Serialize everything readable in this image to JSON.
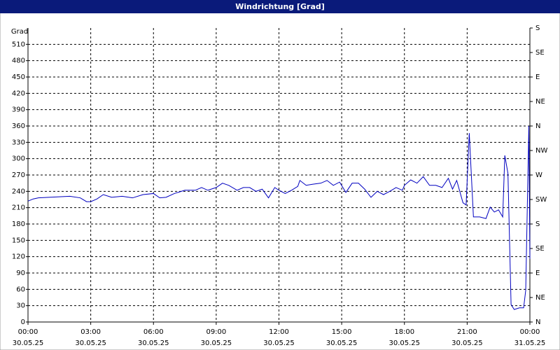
{
  "chart_data": {
    "type": "line",
    "title": "Windrichtung [Grad]",
    "y_label": "Grad",
    "x": [
      0,
      0.25,
      0.5,
      1.0,
      1.5,
      2.0,
      2.5,
      2.8,
      3.0,
      3.3,
      3.6,
      4.0,
      4.5,
      5.0,
      5.5,
      6.0,
      6.3,
      6.6,
      7.0,
      7.5,
      8.0,
      8.3,
      8.6,
      9.0,
      9.3,
      9.6,
      10.0,
      10.3,
      10.6,
      10.9,
      11.2,
      11.5,
      11.8,
      12.0,
      12.3,
      12.6,
      12.9,
      13.0,
      13.3,
      13.6,
      14.0,
      14.3,
      14.6,
      14.9,
      15.2,
      15.5,
      15.8,
      16.1,
      16.4,
      16.7,
      17.0,
      17.3,
      17.6,
      17.9,
      18.0,
      18.3,
      18.6,
      18.9,
      19.2,
      19.5,
      19.8,
      20.1,
      20.3,
      20.5,
      20.8,
      20.95,
      21.1,
      21.3,
      21.6,
      21.9,
      22.1,
      22.3,
      22.5,
      22.7,
      22.8,
      22.95,
      23.1,
      23.25,
      23.5,
      23.7,
      23.8,
      23.95,
      24.0
    ],
    "series": [
      {
        "name": "Windrichtung",
        "color": "#0000c0",
        "values": [
          222,
          226,
          228,
          229,
          230,
          231,
          228,
          221,
          221,
          226,
          234,
          229,
          231,
          228,
          234,
          236,
          228,
          229,
          236,
          242,
          242,
          247,
          242,
          247,
          255,
          251,
          242,
          247,
          247,
          240,
          244,
          228,
          247,
          242,
          236,
          242,
          249,
          260,
          251,
          253,
          255,
          260,
          251,
          257,
          238,
          255,
          255,
          244,
          229,
          240,
          234,
          240,
          247,
          242,
          251,
          261,
          255,
          267,
          251,
          251,
          247,
          264,
          244,
          260,
          219,
          215,
          347,
          193,
          193,
          190,
          211,
          202,
          206,
          193,
          306,
          273,
          32,
          23,
          26,
          26,
          58,
          360,
          116
        ]
      }
    ],
    "xlim": [
      0,
      24
    ],
    "xticks": [
      {
        "value": 0,
        "label": "00:00"
      },
      {
        "value": 3,
        "label": "03:00"
      },
      {
        "value": 6,
        "label": "06:00"
      },
      {
        "value": 9,
        "label": "09:00"
      },
      {
        "value": 12,
        "label": "12:00"
      },
      {
        "value": 15,
        "label": "15:00"
      },
      {
        "value": 18,
        "label": "18:00"
      },
      {
        "value": 21,
        "label": "21:00"
      },
      {
        "value": 24,
        "label": "00:00"
      }
    ],
    "xtick_dates": [
      "30.05.25",
      "30.05.25",
      "30.05.25",
      "30.05.25",
      "30.05.25",
      "30.05.25",
      "30.05.25",
      "30.05.25",
      "31.05.25"
    ],
    "ylim": [
      0,
      540
    ],
    "yticks": [
      0,
      30,
      60,
      90,
      120,
      150,
      180,
      210,
      240,
      270,
      300,
      330,
      360,
      390,
      420,
      450,
      480,
      510
    ],
    "y2lim": [
      0,
      540
    ],
    "y2ticks": [
      {
        "value": 0,
        "label": "N"
      },
      {
        "value": 45,
        "label": "NE"
      },
      {
        "value": 90,
        "label": "E"
      },
      {
        "value": 135,
        "label": "SE"
      },
      {
        "value": 180,
        "label": "S"
      },
      {
        "value": 225,
        "label": "SW"
      },
      {
        "value": 270,
        "label": "W"
      },
      {
        "value": 315,
        "label": "NW"
      },
      {
        "value": 360,
        "label": "N"
      },
      {
        "value": 405,
        "label": "NE"
      },
      {
        "value": 450,
        "label": "E"
      },
      {
        "value": 495,
        "label": "SE"
      },
      {
        "value": 540,
        "label": "S"
      }
    ],
    "grid": true
  }
}
